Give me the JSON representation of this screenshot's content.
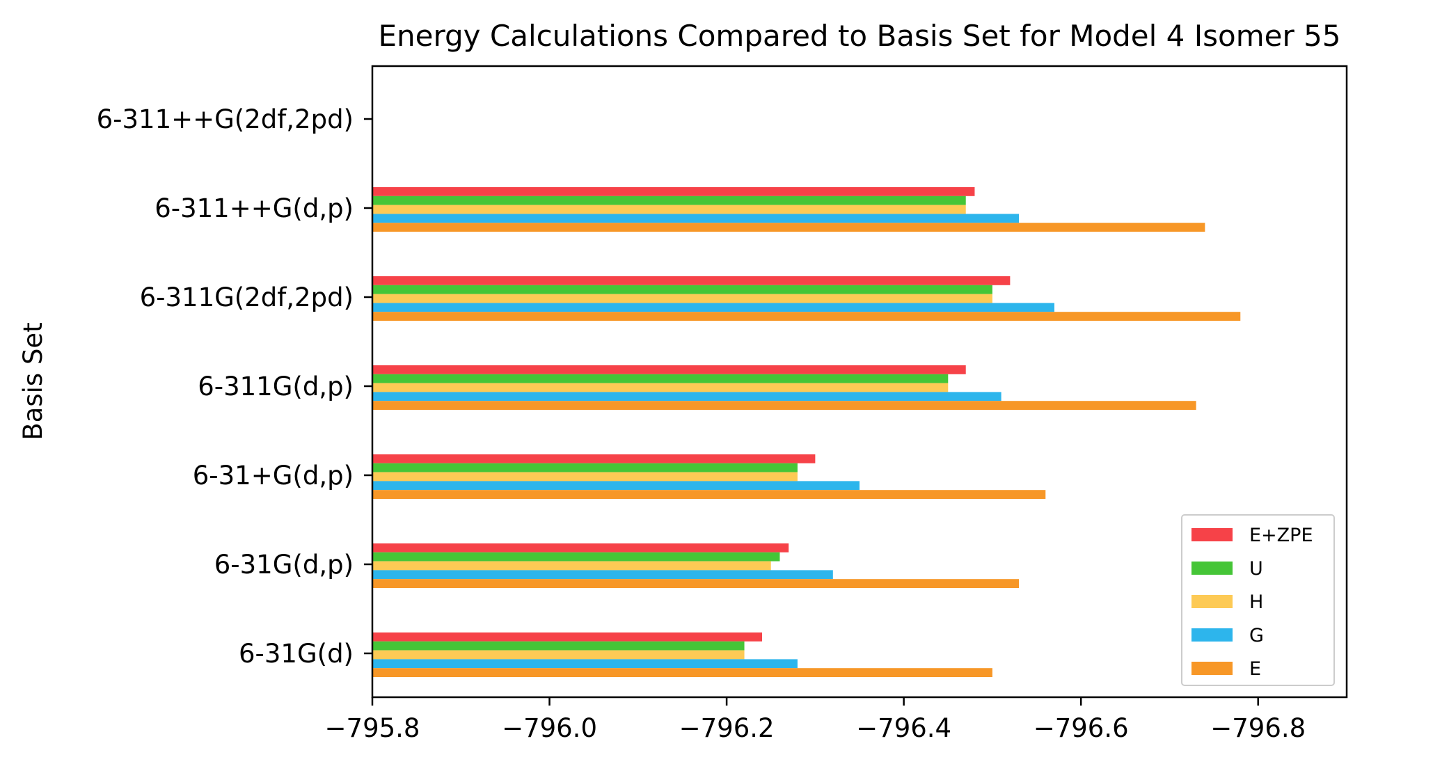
{
  "chart_data": {
    "type": "bar",
    "orientation": "horizontal",
    "title": "Energy Calculations Compared to Basis Set for Model 4 Isomer 55",
    "xlabel": "",
    "ylabel": "Basis Set",
    "categories": [
      "6-31G(d)",
      "6-31G(d,p)",
      "6-31+G(d,p)",
      "6-311G(d,p)",
      "6-311G(2df,2pd)",
      "6-311++G(d,p)",
      "6-311++G(2df,2pd)"
    ],
    "xlim": [
      -795.8,
      -796.9
    ],
    "xticks": [
      -795.8,
      -796.0,
      -796.2,
      -796.4,
      -796.6,
      -796.8
    ],
    "xtick_labels": [
      "−795.8",
      "−796.0",
      "−796.2",
      "−796.4",
      "−796.6",
      "−796.8"
    ],
    "series": [
      {
        "name": "E+ZPE",
        "color": "#f64248",
        "values": [
          -796.24,
          -796.27,
          -796.3,
          -796.47,
          -796.52,
          -796.48,
          null
        ]
      },
      {
        "name": "U",
        "color": "#45c537",
        "values": [
          -796.22,
          -796.26,
          -796.28,
          -796.45,
          -796.5,
          -796.47,
          null
        ]
      },
      {
        "name": "H",
        "color": "#fdca55",
        "values": [
          -796.22,
          -796.25,
          -796.28,
          -796.45,
          -796.5,
          -796.47,
          null
        ]
      },
      {
        "name": "G",
        "color": "#2db5ec",
        "values": [
          -796.28,
          -796.32,
          -796.35,
          -796.51,
          -796.57,
          -796.53,
          null
        ]
      },
      {
        "name": "E",
        "color": "#f79727",
        "values": [
          -796.5,
          -796.53,
          -796.56,
          -796.73,
          -796.78,
          -796.74,
          null
        ]
      }
    ],
    "legend": "lower-right",
    "grid": false
  }
}
